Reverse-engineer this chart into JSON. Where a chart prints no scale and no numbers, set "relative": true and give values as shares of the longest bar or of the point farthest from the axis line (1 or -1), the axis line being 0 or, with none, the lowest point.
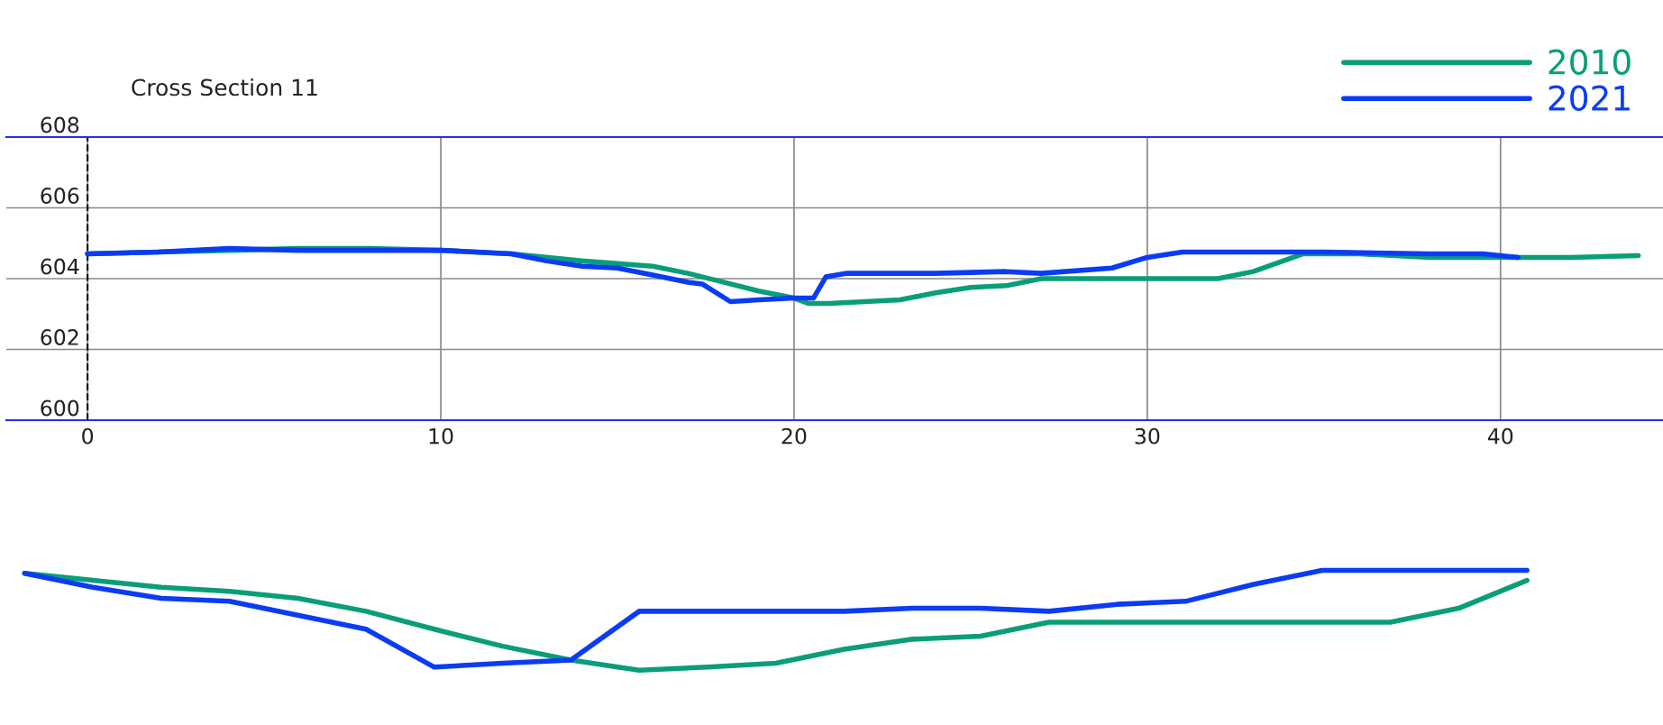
{
  "chart_data": [
    {
      "type": "line",
      "title": "Cross Section 11",
      "legend": "top right",
      "grid": true,
      "line_style": "solid",
      "ref_lines": [
        {
          "axis": "x",
          "value": 0,
          "color": "#000000",
          "line_style": "dashed"
        }
      ],
      "xlim": [
        -2.3,
        44.6
      ],
      "xticks": [
        0,
        10,
        20,
        30,
        40
      ],
      "ylim": [
        600,
        608
      ],
      "yticks": [
        600,
        602,
        604,
        606,
        608
      ],
      "series": [
        {
          "name": "2010",
          "color": "#0a9e78",
          "x": [
            0,
            2,
            4,
            6,
            8,
            10,
            12,
            14,
            16,
            17,
            18,
            19,
            20,
            20.4,
            21,
            22,
            23,
            24,
            25,
            26,
            27,
            28,
            30,
            32,
            33,
            34.4,
            36,
            38,
            40,
            42,
            43.9
          ],
          "values": [
            604.7,
            604.75,
            604.8,
            604.85,
            604.85,
            604.8,
            604.7,
            604.5,
            604.35,
            604.15,
            603.9,
            603.65,
            603.45,
            603.3,
            603.3,
            603.35,
            603.4,
            603.6,
            603.75,
            603.8,
            604.0,
            604.0,
            604.0,
            604.0,
            604.2,
            604.7,
            604.7,
            604.6,
            604.6,
            604.6,
            604.65
          ]
        },
        {
          "name": "2021",
          "color": "#0a3cf5",
          "x": [
            0,
            2,
            4,
            6,
            8,
            10,
            12,
            13,
            14,
            15,
            16,
            17,
            17.4,
            18.2,
            19,
            20,
            20.55,
            20.9,
            21.5,
            24,
            26,
            27,
            29,
            30,
            31,
            33,
            35,
            38,
            39.5,
            40.5
          ],
          "values": [
            604.7,
            604.75,
            604.85,
            604.8,
            604.8,
            604.8,
            604.7,
            604.5,
            604.35,
            604.3,
            604.1,
            603.9,
            603.85,
            603.35,
            603.4,
            603.45,
            603.45,
            604.05,
            604.15,
            604.15,
            604.2,
            604.15,
            604.3,
            604.6,
            604.75,
            604.75,
            604.75,
            604.7,
            604.7,
            604.6
          ]
        }
      ]
    },
    {
      "type": "line",
      "relative": true,
      "line_style": "solid",
      "categories": [
        null,
        null,
        null,
        null,
        null,
        null,
        null,
        null,
        null,
        null,
        null,
        null,
        null,
        null,
        null,
        null,
        null,
        null,
        null,
        null,
        null,
        null,
        null
      ],
      "series": [
        {
          "color": "#0a9e78",
          "values": [
            0.97,
            0.9,
            0.83,
            0.79,
            0.72,
            0.59,
            0.41,
            0.24,
            0.1,
            0.0,
            0.03,
            0.07,
            0.21,
            0.31,
            0.34,
            0.48,
            0.48,
            0.48,
            0.48,
            0.48,
            0.48,
            0.62,
            0.9
          ]
        },
        {
          "color": "#0a3cf5",
          "values": [
            0.97,
            0.83,
            0.72,
            0.69,
            0.55,
            0.41,
            0.03,
            0.07,
            0.1,
            0.59,
            0.59,
            0.59,
            0.59,
            0.62,
            0.62,
            0.59,
            0.66,
            0.69,
            0.86,
            1.0,
            1.0,
            1.0,
            1.0
          ]
        }
      ]
    }
  ]
}
